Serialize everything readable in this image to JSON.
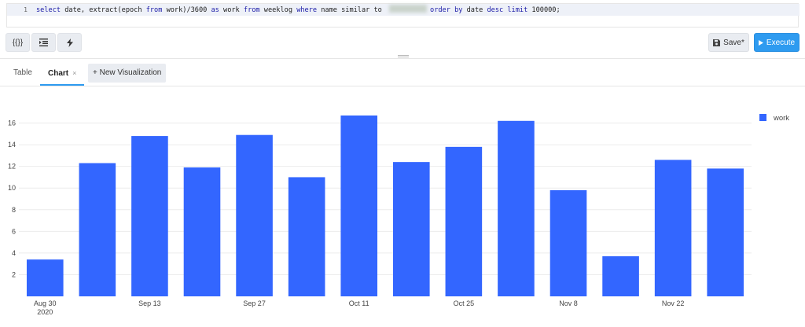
{
  "editor": {
    "line_number": "1",
    "code": {
      "t1": "select",
      "t2": " date, extract(epoch ",
      "t3": "from",
      "t4": " work)/3600 ",
      "t5": "as",
      "t6": " work ",
      "t7": "from",
      "t8": " weeklog ",
      "t9": "where",
      "t10": " name similar to ",
      "t11": "order by",
      "t12": " date ",
      "t13": "desc",
      "t14": " ",
      "t15": "limit",
      "t16": " 100000;"
    }
  },
  "toolbar": {
    "format_label": "{{}}",
    "save_label": "Save*",
    "execute_label": "Execute"
  },
  "tabs": [
    {
      "label": "Table"
    },
    {
      "label": "Chart",
      "close": "×"
    }
  ],
  "new_visualization_label": "+ New Visualization",
  "colors": {
    "accent": "#2e9bf0",
    "bar": "#3366ff"
  },
  "chart_data": {
    "type": "bar",
    "categories": [
      "2020-08-30",
      "2020-09-06",
      "2020-09-13",
      "2020-09-20",
      "2020-09-27",
      "2020-10-04",
      "2020-10-11",
      "2020-10-18",
      "2020-10-25",
      "2020-11-01",
      "2020-11-08",
      "2020-11-15",
      "2020-11-22",
      "2020-11-29"
    ],
    "series": [
      {
        "name": "work",
        "values": [
          3.4,
          12.3,
          14.8,
          11.9,
          14.9,
          11.0,
          16.7,
          12.4,
          13.8,
          16.2,
          9.8,
          3.7,
          12.6,
          11.8
        ]
      }
    ],
    "xticks": [
      {
        "category": "2020-08-30",
        "label": "Aug 30",
        "sublabel": "2020"
      },
      {
        "category": "2020-09-13",
        "label": "Sep 13",
        "sublabel": ""
      },
      {
        "category": "2020-09-27",
        "label": "Sep 27",
        "sublabel": ""
      },
      {
        "category": "2020-10-11",
        "label": "Oct 11",
        "sublabel": ""
      },
      {
        "category": "2020-10-25",
        "label": "Oct 25",
        "sublabel": ""
      },
      {
        "category": "2020-11-08",
        "label": "Nov 8",
        "sublabel": ""
      },
      {
        "category": "2020-11-22",
        "label": "Nov 22",
        "sublabel": ""
      }
    ],
    "yticks": [
      2,
      4,
      6,
      8,
      10,
      12,
      14,
      16
    ],
    "ylim": [
      0,
      17.2
    ],
    "grid": true,
    "legend": "top-right"
  }
}
